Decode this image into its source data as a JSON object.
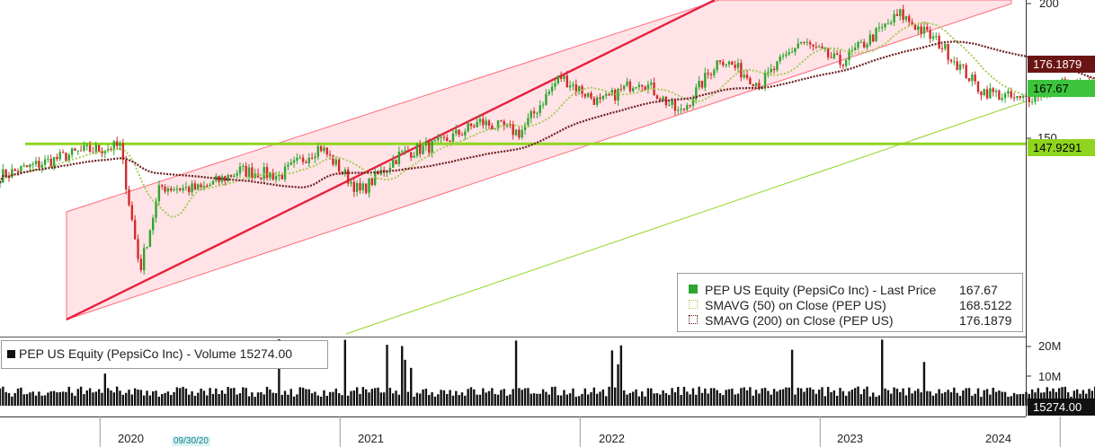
{
  "chart_data": [
    {
      "type": "line",
      "y_ticks": [
        {
          "label": "200",
          "value": 200
        },
        {
          "label": "150",
          "value": 150
        }
      ],
      "x_ticks": [
        "2020",
        "2021",
        "2022",
        "2023",
        "2024"
      ],
      "date_marker": "09/30/20",
      "ylim": [
        97,
        201
      ],
      "series": [
        {
          "name": "PEP US Equity (PepsiCo Inc) - Last Price",
          "value_label": "167.67",
          "color": "#2ea62e"
        },
        {
          "name": "SMAVG (50)  on Close (PEP US)",
          "value_label": "168.5122",
          "color": "#a8cc5a"
        },
        {
          "name": "SMAVG (200)  on Close (PEP US)",
          "value_label": "176.1879",
          "color": "#6b1f1f"
        }
      ],
      "price_path": [
        {
          "x": "2019-08",
          "y": 136
        },
        {
          "x": "2019-12",
          "y": 145
        },
        {
          "x": "2020-02",
          "y": 147
        },
        {
          "x": "2020-03",
          "y": 101
        },
        {
          "x": "2020-04",
          "y": 132
        },
        {
          "x": "2020-06",
          "y": 131
        },
        {
          "x": "2020-08",
          "y": 138
        },
        {
          "x": "2020-10",
          "y": 136
        },
        {
          "x": "2020-12",
          "y": 147
        },
        {
          "x": "2021-02",
          "y": 130
        },
        {
          "x": "2021-04",
          "y": 144
        },
        {
          "x": "2021-06",
          "y": 148
        },
        {
          "x": "2021-08",
          "y": 156
        },
        {
          "x": "2021-10",
          "y": 152
        },
        {
          "x": "2021-12",
          "y": 173
        },
        {
          "x": "2022-02",
          "y": 163
        },
        {
          "x": "2022-04",
          "y": 172
        },
        {
          "x": "2022-06",
          "y": 159
        },
        {
          "x": "2022-08",
          "y": 180
        },
        {
          "x": "2022-10",
          "y": 170
        },
        {
          "x": "2022-12",
          "y": 186
        },
        {
          "x": "2023-02",
          "y": 178
        },
        {
          "x": "2023-05",
          "y": 196
        },
        {
          "x": "2023-07",
          "y": 185
        },
        {
          "x": "2023-09",
          "y": 168
        },
        {
          "x": "2023-11",
          "y": 164
        },
        {
          "x": "2024-01",
          "y": 170
        },
        {
          "x": "2024-04",
          "y": 167.67
        }
      ],
      "annotations": [
        {
          "type": "horizontal_line",
          "value": 147.9291,
          "label": "147.9291",
          "color": "#8fd41f"
        },
        {
          "type": "trend_channel",
          "color": "#ff6b7d"
        },
        {
          "type": "trend_line",
          "color": "#e8203f"
        },
        {
          "type": "trend_line",
          "color": "#8fd41f"
        }
      ],
      "price_tags": [
        {
          "label": "176.1879",
          "value": 176.1879,
          "bg": "#6b1414",
          "fg": "#ffffff"
        },
        {
          "label": "167.67",
          "value": 167.67,
          "bg": "#3cc43c",
          "fg": "#000000"
        },
        {
          "label": "147.9291",
          "value": 147.9291,
          "bg": "#8fd41f",
          "fg": "#000000"
        }
      ]
    },
    {
      "type": "bar",
      "series": [
        {
          "name": "PEP US Equity (PepsiCo Inc) - Volume",
          "value_label": "15274.00",
          "color": "#111111"
        }
      ],
      "y_ticks": [
        {
          "label": "20M",
          "value": 20000000
        },
        {
          "label": "10M",
          "value": 10000000
        }
      ],
      "last_tag": "15274.00",
      "typical_volume": 5000000
    }
  ]
}
